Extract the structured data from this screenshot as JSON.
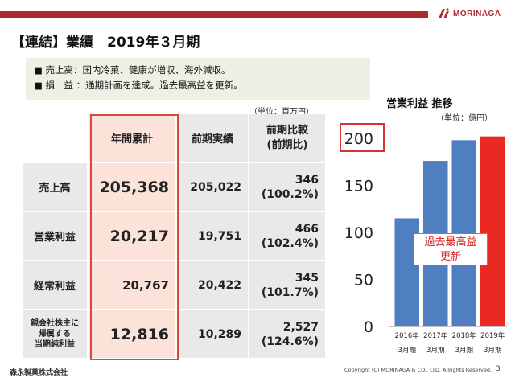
{
  "header": {
    "logo_text": "MORINAGA"
  },
  "page_title": "【連結】業績　2019年３月期",
  "summary": {
    "line1": "■ 売上高：国内冷菓、健康が増収、海外減収。",
    "line2": "■ 損　益 ：通期計画を達成。過去最高益を更新。"
  },
  "table": {
    "unit": "（単位：百万円）",
    "headers": {
      "annual": "年間累計",
      "prev": "前期実績",
      "cmp_line1": "前期比較",
      "cmp_line2": "(前期比)"
    },
    "rows": [
      {
        "label": "売上高",
        "annual": "205,368",
        "prev": "205,022",
        "diff": "346",
        "ratio": "(100.2%)"
      },
      {
        "label": "営業利益",
        "annual": "20,217",
        "prev": "19,751",
        "diff": "466",
        "ratio": "(102.4%)"
      },
      {
        "label": "経常利益",
        "annual": "20,767",
        "prev": "20,422",
        "diff": "345",
        "ratio": "(101.7%)"
      },
      {
        "label_line1": "親会社株主に",
        "label_line2": "帰属する",
        "label_line3": "当期純利益",
        "annual": "12,816",
        "prev": "10,289",
        "diff": "2,527",
        "ratio": "(124.6%)"
      }
    ]
  },
  "chart_title": "営業利益 推移",
  "chart_unit": "（単位：億円）",
  "callout": {
    "line1": "過去最高益",
    "line2": "更新"
  },
  "chart_data": {
    "type": "bar",
    "categories": [
      "2016年",
      "2017年",
      "2018年",
      "2019年"
    ],
    "sub_labels": [
      "3月期",
      "3月期",
      "3月期",
      "3月期"
    ],
    "values": [
      115,
      176,
      198,
      202
    ],
    "ylim": [
      0,
      200
    ],
    "yticks": [
      0,
      50,
      100,
      150,
      200
    ],
    "colors": [
      "#4f7fc0",
      "#4f7fc0",
      "#4f7fc0",
      "#ea2a22"
    ],
    "grid": false
  },
  "footer": {
    "brand": "森永製菓株式会社",
    "copyright": "Copyright (C) MORINAGA & CO., LTD. Allrights Reserved.",
    "page": "3"
  }
}
